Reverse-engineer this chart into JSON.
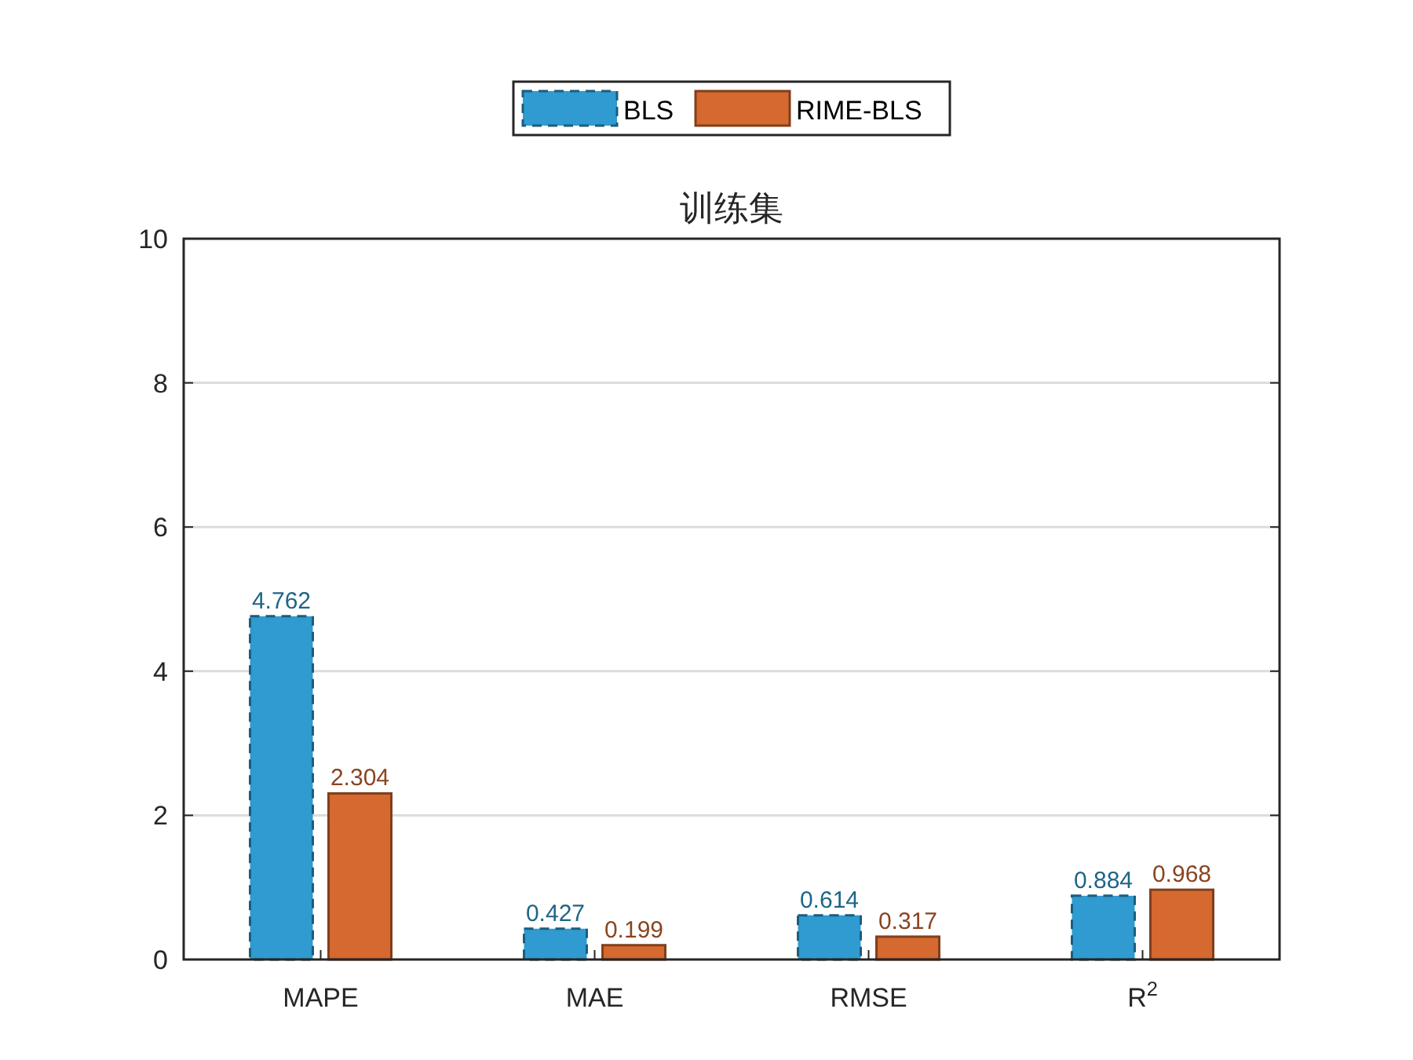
{
  "chart_data": {
    "type": "bar",
    "title": "训练集",
    "categories": [
      "MAPE",
      "MAE",
      "RMSE",
      "R$^{2}$"
    ],
    "series": [
      {
        "name": "BLS",
        "color": "#2f9bd0",
        "values": [
          4.762,
          0.427,
          0.614,
          0.884
        ],
        "line_style": "dashed"
      },
      {
        "name": "RIME-BLS",
        "color": "#d5692f",
        "values": [
          2.304,
          0.199,
          0.317,
          0.968
        ],
        "line_style": "solid"
      }
    ],
    "ylim": [
      0,
      10
    ],
    "yticks": [
      0,
      2,
      4,
      6,
      8,
      10
    ],
    "grid": "y",
    "legend": "top",
    "data_labels": true
  }
}
